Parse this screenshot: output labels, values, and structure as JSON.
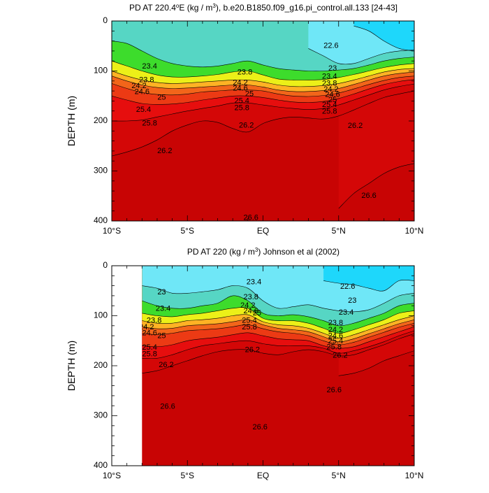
{
  "colors": {
    "bands": [
      "#7a00d6",
      "#3d0fd9",
      "#1416e6",
      "#1450f0",
      "#1a84f2",
      "#1cb2f6",
      "#1ed7fb",
      "#44e5fb",
      "#6fe7f7",
      "#a3f0ee",
      "#56d6c4",
      "#1fcf7d",
      "#3ddc2c",
      "#a6e81e",
      "#ecf018",
      "#ffd21e",
      "#ffb224",
      "#f98b20",
      "#f2651a",
      "#ec3a14",
      "#e60e0e",
      "#d40707",
      "#c80404"
    ],
    "contour_line": "#000000",
    "missing": "#ffffff"
  },
  "x_ticks": [
    "10°S",
    "5°S",
    "EQ",
    "5°N",
    "10°N"
  ],
  "chart_data": [
    {
      "type": "heatmap",
      "title": "PD AT 220.4°E (kg / m³), b.e20.B1850.f09_g16.pi_control.all.133 [24-43]",
      "title_main": "PD AT 220.4",
      "title_sup": "o",
      "title_mid": "E (kg / m",
      "title_sup2": "3",
      "title_tail": "), b.e20.B1850.f09_g16.pi_control.all.133 [24-43]",
      "xlabel": "",
      "ylabel": "DEPTH (m)",
      "x_range": [
        -10,
        10
      ],
      "ylim": [
        0,
        400
      ],
      "y_ticks": [
        "0",
        "100",
        "200",
        "300",
        "400"
      ],
      "levels": [
        21.4,
        21.6,
        21.8,
        22.0,
        22.2,
        22.4,
        22.6,
        22.8,
        23.0,
        23.2,
        23.4,
        23.6,
        23.8,
        24.0,
        24.2,
        24.4,
        24.6,
        24.8,
        25.0,
        25.4,
        25.8,
        26.2,
        26.6
      ],
      "contours": [
        {
          "level": 22.6,
          "depth": [
            null,
            null,
            null,
            null,
            null,
            null,
            null,
            null,
            null,
            null,
            null,
            null,
            null,
            null,
            null,
            null,
            10,
            20,
            40,
            55,
            60
          ]
        },
        {
          "level": 23.0,
          "depth": [
            null,
            null,
            null,
            null,
            null,
            null,
            null,
            null,
            null,
            null,
            null,
            null,
            null,
            55,
            70,
            85,
            85,
            75,
            65,
            60,
            58
          ]
        },
        {
          "level": 23.4,
          "depth": [
            40,
            45,
            60,
            75,
            85,
            90,
            92,
            90,
            85,
            80,
            88,
            95,
            98,
            100,
            100,
            98,
            95,
            88,
            80,
            75,
            72
          ]
        },
        {
          "level": 23.8,
          "depth": [
            80,
            90,
            100,
            108,
            112,
            112,
            110,
            107,
            102,
            100,
            108,
            116,
            118,
            118,
            117,
            113,
            107,
            100,
            93,
            88,
            85
          ]
        },
        {
          "level": 24.2,
          "depth": [
            100,
            110,
            118,
            123,
            125,
            124,
            122,
            120,
            118,
            118,
            122,
            128,
            131,
            131,
            129,
            125,
            118,
            110,
            102,
            97,
            95
          ]
        },
        {
          "level": 24.6,
          "depth": [
            110,
            120,
            128,
            133,
            135,
            134,
            132,
            130,
            128,
            128,
            132,
            138,
            141,
            141,
            139,
            135,
            127,
            118,
            110,
            105,
            102
          ]
        },
        {
          "level": 25.0,
          "depth": [
            125,
            135,
            143,
            147,
            148,
            146,
            142,
            140,
            138,
            138,
            140,
            146,
            150,
            151,
            149,
            144,
            136,
            127,
            119,
            113,
            110
          ]
        },
        {
          "level": 25.4,
          "depth": [
            150,
            158,
            165,
            167,
            166,
            163,
            158,
            154,
            150,
            150,
            153,
            158,
            162,
            163,
            161,
            155,
            146,
            136,
            127,
            121,
            117
          ]
        },
        {
          "level": 25.8,
          "depth": [
            200,
            200,
            198,
            192,
            186,
            180,
            175,
            170,
            164,
            164,
            168,
            172,
            175,
            177,
            175,
            168,
            158,
            148,
            138,
            131,
            126
          ]
        },
        {
          "level": 26.2,
          "depth": [
            270,
            262,
            252,
            238,
            220,
            208,
            200,
            203,
            215,
            222,
            205,
            196,
            192,
            194,
            196,
            190,
            178,
            165,
            153,
            146,
            140
          ]
        },
        {
          "level": 26.6,
          "depth": [
            null,
            null,
            null,
            null,
            null,
            null,
            null,
            null,
            null,
            null,
            null,
            null,
            null,
            null,
            null,
            375,
            345,
            325,
            305,
            292,
            285
          ]
        }
      ],
      "labels": [
        {
          "text": "23.4",
          "x": -7.5,
          "y": 91
        },
        {
          "text": "23.8",
          "x": -7.7,
          "y": 118
        },
        {
          "text": "24.2",
          "x": -8.2,
          "y": 130
        },
        {
          "text": "24.6",
          "x": -8.0,
          "y": 142
        },
        {
          "text": "25",
          "x": -6.7,
          "y": 153
        },
        {
          "text": "25.4",
          "x": -7.9,
          "y": 178
        },
        {
          "text": "25.8",
          "x": -7.5,
          "y": 205
        },
        {
          "text": "26.2",
          "x": -6.5,
          "y": 260
        },
        {
          "text": "23.8",
          "x": -1.2,
          "y": 103
        },
        {
          "text": "24.2",
          "x": -1.5,
          "y": 124
        },
        {
          "text": "24.6",
          "x": -1.5,
          "y": 135
        },
        {
          "text": "25",
          "x": -0.9,
          "y": 146
        },
        {
          "text": "25.4",
          "x": -1.4,
          "y": 160
        },
        {
          "text": "25.8",
          "x": -1.4,
          "y": 174
        },
        {
          "text": "26.2",
          "x": -1.1,
          "y": 209
        },
        {
          "text": "22.6",
          "x": 4.5,
          "y": 50
        },
        {
          "text": "23",
          "x": 4.6,
          "y": 95
        },
        {
          "text": "23.4",
          "x": 4.4,
          "y": 111
        },
        {
          "text": "23.8",
          "x": 4.4,
          "y": 125
        },
        {
          "text": "24.2",
          "x": 4.5,
          "y": 137
        },
        {
          "text": "24.6",
          "x": 4.6,
          "y": 148
        },
        {
          "text": "25",
          "x": 4.6,
          "y": 158
        },
        {
          "text": "25.4",
          "x": 4.4,
          "y": 168
        },
        {
          "text": "25.8",
          "x": 4.4,
          "y": 181
        },
        {
          "text": "26.2",
          "x": 6.1,
          "y": 210
        },
        {
          "text": "26.6",
          "x": 7.0,
          "y": 350
        },
        {
          "text": "26.6",
          "x": -0.8,
          "y": 394
        }
      ]
    },
    {
      "type": "heatmap",
      "title": "PD AT 220 (kg / m³) Johnson et al (2002)",
      "title_main": "PD AT 220 (kg / m",
      "title_sup": "3",
      "title_tail": ") Johnson et al (2002)",
      "xlabel": "",
      "ylabel": "DEPTH (m)",
      "x_range": [
        -10,
        10
      ],
      "data_x_range": [
        -8,
        10
      ],
      "ylim": [
        0,
        400
      ],
      "y_ticks": [
        "0",
        "100",
        "200",
        "300",
        "400"
      ],
      "levels": [
        21.4,
        21.6,
        21.8,
        22.0,
        22.2,
        22.4,
        22.6,
        22.8,
        23.0,
        23.2,
        23.4,
        23.6,
        23.8,
        24.0,
        24.2,
        24.4,
        24.6,
        24.8,
        25.0,
        25.4,
        25.8,
        26.2,
        26.6
      ],
      "contours": [
        {
          "level": 22.6,
          "depth": [
            null,
            null,
            null,
            null,
            null,
            null,
            null,
            null,
            null,
            null,
            null,
            null,
            null,
            null,
            30,
            35,
            38,
            45,
            50,
            30,
            30
          ]
        },
        {
          "level": 23.0,
          "depth": [
            null,
            null,
            40,
            45,
            55,
            55,
            52,
            48,
            40,
            45,
            70,
            85,
            82,
            78,
            85,
            90,
            92,
            88,
            75,
            60,
            55
          ]
        },
        {
          "level": 23.4,
          "depth": [
            null,
            null,
            70,
            80,
            85,
            85,
            80,
            75,
            60,
            70,
            95,
            100,
            98,
            102,
            110,
            120,
            115,
            105,
            95,
            80,
            75
          ]
        },
        {
          "level": 23.8,
          "depth": [
            null,
            null,
            95,
            100,
            102,
            98,
            95,
            90,
            85,
            85,
            105,
            110,
            110,
            115,
            125,
            135,
            128,
            118,
            108,
            95,
            90
          ]
        },
        {
          "level": 24.2,
          "depth": [
            null,
            null,
            110,
            115,
            115,
            110,
            108,
            105,
            100,
            98,
            112,
            118,
            120,
            125,
            135,
            145,
            138,
            128,
            118,
            108,
            100
          ]
        },
        {
          "level": 24.6,
          "depth": [
            null,
            null,
            122,
            126,
            125,
            120,
            118,
            116,
            112,
            108,
            118,
            125,
            128,
            132,
            142,
            152,
            146,
            136,
            126,
            116,
            108
          ]
        },
        {
          "level": 25.0,
          "depth": [
            null,
            null,
            135,
            138,
            135,
            130,
            128,
            126,
            122,
            118,
            126,
            132,
            135,
            140,
            150,
            158,
            153,
            143,
            133,
            123,
            115
          ]
        },
        {
          "level": 25.4,
          "depth": [
            null,
            null,
            160,
            162,
            158,
            150,
            146,
            143,
            138,
            134,
            140,
            146,
            148,
            150,
            160,
            165,
            162,
            152,
            142,
            132,
            122
          ]
        },
        {
          "level": 25.8,
          "depth": [
            null,
            null,
            185,
            185,
            178,
            168,
            160,
            156,
            152,
            150,
            156,
            160,
            160,
            160,
            165,
            175,
            170,
            162,
            152,
            140,
            130
          ]
        },
        {
          "level": 26.2,
          "depth": [
            null,
            null,
            215,
            210,
            200,
            190,
            180,
            172,
            168,
            168,
            175,
            178,
            172,
            168,
            172,
            180,
            178,
            168,
            158,
            146,
            136
          ]
        },
        {
          "level": 26.6,
          "depth": [
            null,
            null,
            null,
            null,
            null,
            null,
            null,
            null,
            null,
            null,
            null,
            null,
            null,
            null,
            null,
            220,
            215,
            205,
            190,
            180,
            170
          ]
        }
      ],
      "labels": [
        {
          "text": "23",
          "x": -6.7,
          "y": 53
        },
        {
          "text": "23.4",
          "x": -6.6,
          "y": 86
        },
        {
          "text": "23.8",
          "x": -7.2,
          "y": 110
        },
        {
          "text": "24.2",
          "x": -7.7,
          "y": 123
        },
        {
          "text": "24.6",
          "x": -7.5,
          "y": 135
        },
        {
          "text": "25",
          "x": -6.7,
          "y": 141
        },
        {
          "text": "25.4",
          "x": -7.5,
          "y": 164
        },
        {
          "text": "25.8",
          "x": -7.5,
          "y": 177
        },
        {
          "text": "26.2",
          "x": -6.4,
          "y": 199
        },
        {
          "text": "26.6",
          "x": -6.3,
          "y": 282
        },
        {
          "text": "26.6",
          "x": -0.2,
          "y": 323
        },
        {
          "text": "23.4",
          "x": -0.6,
          "y": 33
        },
        {
          "text": "23.8",
          "x": -0.8,
          "y": 63
        },
        {
          "text": "24.2",
          "x": -1.0,
          "y": 80
        },
        {
          "text": "24.6",
          "x": -0.8,
          "y": 91
        },
        {
          "text": "25",
          "x": -0.4,
          "y": 95
        },
        {
          "text": "25.4",
          "x": -0.9,
          "y": 110
        },
        {
          "text": "25.8",
          "x": -0.9,
          "y": 123
        },
        {
          "text": "26.2",
          "x": -0.7,
          "y": 169
        },
        {
          "text": "22.6",
          "x": 5.6,
          "y": 42
        },
        {
          "text": "23",
          "x": 5.9,
          "y": 70
        },
        {
          "text": "23.4",
          "x": 5.5,
          "y": 94
        },
        {
          "text": "23.8",
          "x": 4.8,
          "y": 115
        },
        {
          "text": "24.2",
          "x": 4.8,
          "y": 129
        },
        {
          "text": "24.6",
          "x": 4.8,
          "y": 141
        },
        {
          "text": "25.4",
          "x": 4.8,
          "y": 151
        },
        {
          "text": "25.8",
          "x": 4.7,
          "y": 163
        },
        {
          "text": "26.2",
          "x": 5.1,
          "y": 180
        },
        {
          "text": "26.6",
          "x": 4.7,
          "y": 249
        }
      ]
    }
  ]
}
